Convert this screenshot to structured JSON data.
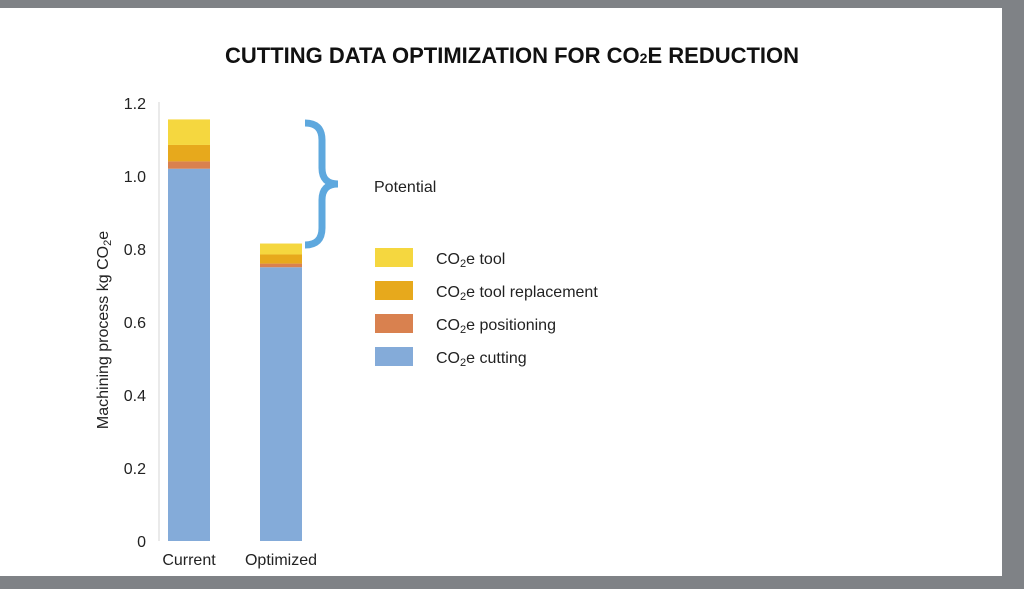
{
  "chart_data": {
    "type": "stacked-bar",
    "title_main": "CUTTING DATA OPTIMIZATION FOR CO",
    "title_sub": "2",
    "title_end": "E REDUCTION",
    "ylabel_main": "Machining process kg CO",
    "ylabel_sub": "2",
    "ylabel_end": "e",
    "ylim": [
      0,
      1.2
    ],
    "y_ticks": [
      "0",
      "0.2",
      "0.4",
      "0.6",
      "0.8",
      "1.0",
      "1.2"
    ],
    "categories": [
      "Current",
      "Optimized"
    ],
    "series": [
      {
        "key": "cutting",
        "name_pre": "CO",
        "name_sub": "2",
        "name_post": "e cutting",
        "color": "#84abd9",
        "values": [
          1.02,
          0.75
        ]
      },
      {
        "key": "positioning",
        "name_pre": "CO",
        "name_sub": "2",
        "name_post": "e positioning",
        "color": "#d9814f",
        "values": [
          0.02,
          0.01
        ]
      },
      {
        "key": "tool_replacement",
        "name_pre": "CO",
        "name_sub": "2",
        "name_post": "e tool replacement",
        "color": "#e7a91c",
        "values": [
          0.045,
          0.025
        ]
      },
      {
        "key": "tool",
        "name_pre": "CO",
        "name_sub": "2",
        "name_post": "e tool",
        "color": "#f5d73f",
        "values": [
          0.07,
          0.03
        ]
      }
    ],
    "legend_order": [
      "tool",
      "tool_replacement",
      "positioning",
      "cutting"
    ],
    "annotation": {
      "label": "Potential",
      "color": "#5ea8de"
    }
  }
}
